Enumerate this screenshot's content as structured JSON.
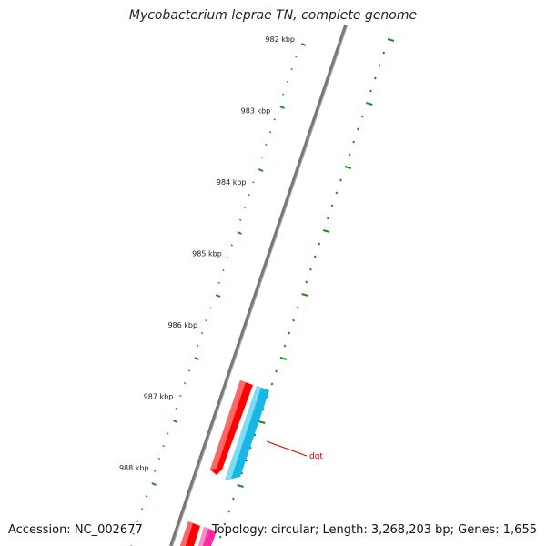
{
  "title": "Mycobacterium leprae TN, complete genome",
  "footer": {
    "accession": "Accession: NC_002677",
    "topology": "Topology: circular; Length: 3,268,203 bp; Genes: 1,655"
  },
  "ticks": [
    "982 kbp",
    "983 kbp",
    "984 kbp",
    "985 kbp",
    "986 kbp",
    "987 kbp",
    "988 kbp"
  ],
  "genes": [
    {
      "name": "dgt",
      "color": "#19b7e6",
      "strand": "reverse"
    },
    {
      "name": "",
      "color": "#ff0000",
      "strand": "forward"
    },
    {
      "name": "",
      "color": "#ff0000",
      "strand": "forward"
    },
    {
      "name": "",
      "color": "#ff2aa0",
      "strand": "forward"
    }
  ],
  "colors": {
    "backbone": "#777777",
    "tick": "#1f8a1f",
    "label_line": "#cc0000"
  }
}
